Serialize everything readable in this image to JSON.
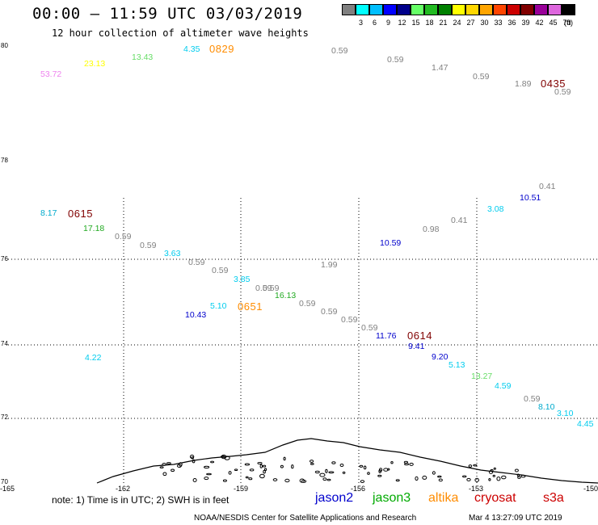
{
  "header": {
    "title": "00:00 – 11:59 UTC 03/03/2019",
    "subtitle": "12 hour collection of altimeter wave heights"
  },
  "color_scale": {
    "unit": "(ft)",
    "bins": [
      {
        "label": "",
        "color": "#808080"
      },
      {
        "label": "3",
        "color": "#00ffff"
      },
      {
        "label": "6",
        "color": "#00bfff"
      },
      {
        "label": "9",
        "color": "#0000ff"
      },
      {
        "label": "12",
        "color": "#00008b"
      },
      {
        "label": "15",
        "color": "#66ff66"
      },
      {
        "label": "18",
        "color": "#22bb22"
      },
      {
        "label": "21",
        "color": "#008000"
      },
      {
        "label": "24",
        "color": "#ffff00"
      },
      {
        "label": "27",
        "color": "#ffd700"
      },
      {
        "label": "30",
        "color": "#ffa500"
      },
      {
        "label": "33",
        "color": "#ff4500"
      },
      {
        "label": "36",
        "color": "#cc0000"
      },
      {
        "label": "39",
        "color": "#800000"
      },
      {
        "label": "42",
        "color": "#990099"
      },
      {
        "label": "45",
        "color": "#dd66dd"
      },
      {
        "label": "70",
        "color": "#000000"
      }
    ]
  },
  "axes": {
    "lat_labels": [
      "80",
      "78",
      "76",
      "74",
      "72",
      "70"
    ],
    "lon_labels": [
      "-165",
      "-162",
      "-159",
      "-156",
      "-153",
      "-150"
    ],
    "lon_range": [
      -165,
      -150
    ],
    "grid": "dotted"
  },
  "observations": [
    {
      "text": "53.72",
      "color": "#ee82ee",
      "big": false
    },
    {
      "text": "23.13",
      "color": "#ffff00",
      "big": false
    },
    {
      "text": "13.43",
      "color": "#66dd66",
      "big": false
    },
    {
      "text": "4.35",
      "color": "#00ccee",
      "big": false
    },
    {
      "text": "0829",
      "color": "#ff8c00",
      "big": true
    },
    {
      "text": "0.59",
      "color": "#808080",
      "big": false
    },
    {
      "text": "0.59",
      "color": "#808080",
      "big": false
    },
    {
      "text": "1.47",
      "color": "#808080",
      "big": false
    },
    {
      "text": "0.59",
      "color": "#808080",
      "big": false
    },
    {
      "text": "1.89",
      "color": "#808080",
      "big": false
    },
    {
      "text": "0435",
      "color": "#800000",
      "big": true
    },
    {
      "text": "0.59",
      "color": "#808080",
      "big": false
    },
    {
      "text": "0.41",
      "color": "#808080",
      "big": false
    },
    {
      "text": "10.51",
      "color": "#0000cc",
      "big": false
    },
    {
      "text": "3.08",
      "color": "#00ccee",
      "big": false
    },
    {
      "text": "0.41",
      "color": "#808080",
      "big": false
    },
    {
      "text": "0.98",
      "color": "#808080",
      "big": false
    },
    {
      "text": "10.59",
      "color": "#0000cc",
      "big": false
    },
    {
      "text": "8.17",
      "color": "#00aacc",
      "big": false
    },
    {
      "text": "0615",
      "color": "#800000",
      "big": true
    },
    {
      "text": "17.18",
      "color": "#22aa22",
      "big": false
    },
    {
      "text": "0.59",
      "color": "#808080",
      "big": false
    },
    {
      "text": "0.59",
      "color": "#808080",
      "big": false
    },
    {
      "text": "3.63",
      "color": "#00ccee",
      "big": false
    },
    {
      "text": "0.59",
      "color": "#808080",
      "big": false
    },
    {
      "text": "0.59",
      "color": "#808080",
      "big": false
    },
    {
      "text": "1.99",
      "color": "#808080",
      "big": false
    },
    {
      "text": "3.85",
      "color": "#00ccee",
      "big": false
    },
    {
      "text": "0.59",
      "color": "#808080",
      "big": false
    },
    {
      "text": "0.59",
      "color": "#808080",
      "big": false
    },
    {
      "text": "16.13",
      "color": "#22aa22",
      "big": false
    },
    {
      "text": "0.59",
      "color": "#808080",
      "big": false
    },
    {
      "text": "0.59",
      "color": "#808080",
      "big": false
    },
    {
      "text": "0.59",
      "color": "#808080",
      "big": false
    },
    {
      "text": "0.59",
      "color": "#808080",
      "big": false
    },
    {
      "text": "5.10",
      "color": "#00ccee",
      "big": false
    },
    {
      "text": "0651",
      "color": "#ff8c00",
      "big": true
    },
    {
      "text": "10.43",
      "color": "#0000cc",
      "big": false
    },
    {
      "text": "11.76",
      "color": "#0000cc",
      "big": false
    },
    {
      "text": "0614",
      "color": "#800000",
      "big": true
    },
    {
      "text": "9.41",
      "color": "#0000cc",
      "big": false
    },
    {
      "text": "9.20",
      "color": "#0000cc",
      "big": false
    },
    {
      "text": "5.13",
      "color": "#00ccee",
      "big": false
    },
    {
      "text": "4.22",
      "color": "#00ccee",
      "big": false
    },
    {
      "text": "13.27",
      "color": "#66dd66",
      "big": false
    },
    {
      "text": "4.59",
      "color": "#00ccee",
      "big": false
    },
    {
      "text": "0.59",
      "color": "#808080",
      "big": false
    },
    {
      "text": "8.10",
      "color": "#00aacc",
      "big": false
    },
    {
      "text": "3.10",
      "color": "#00ccee",
      "big": false
    },
    {
      "text": "4.45",
      "color": "#00ccee",
      "big": false
    }
  ],
  "footer": {
    "note": "note:  1) Time is in UTC;  2) SWH is in feet",
    "satellites": [
      {
        "name": "jason2",
        "color": "#0000cc"
      },
      {
        "name": "jason3",
        "color": "#00aa00"
      },
      {
        "name": "altika",
        "color": "#ff8c00"
      },
      {
        "name": "cryosat",
        "color": "#cc0000"
      },
      {
        "name": "s3a",
        "color": "#cc0000"
      }
    ],
    "credit": "NOAA/NESDIS Center for Satellite Applications and Research",
    "timestamp": "Mar  4 13:27:09 UTC 2019"
  }
}
